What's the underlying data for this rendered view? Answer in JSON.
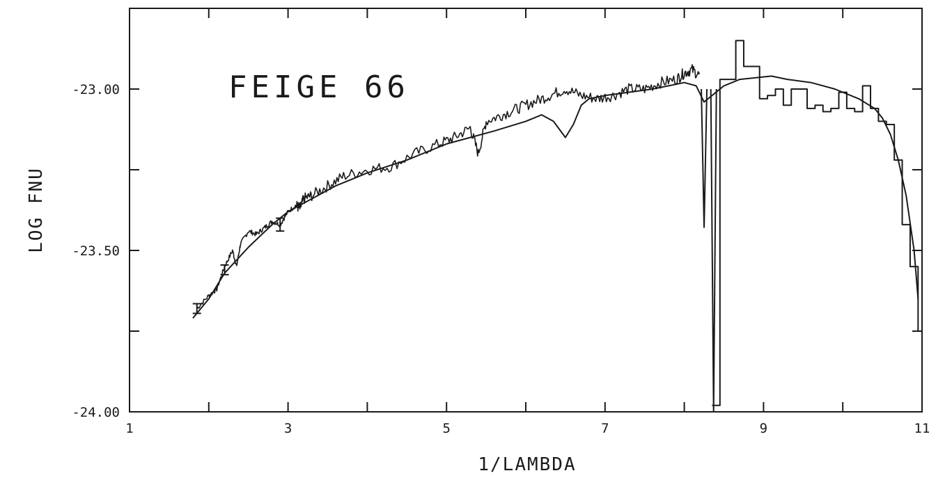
{
  "chart_data": {
    "type": "line",
    "title": "FEIGE 66",
    "xlabel": "1/LAMBDA",
    "ylabel": "LOG FNU",
    "xlim": [
      1,
      11
    ],
    "ylim": [
      -24.0,
      -22.75
    ],
    "x_tick_labels": [
      "1",
      "3",
      "5",
      "7",
      "9",
      "11"
    ],
    "y_tick_labels": [
      "-23.00",
      "-23.50",
      "-24.00"
    ],
    "x_ticks": [
      1,
      3,
      5,
      7,
      9,
      11
    ],
    "x_minor_ticks": [
      2,
      4,
      6,
      8,
      10
    ],
    "y_ticks": [
      -23.0,
      -23.5,
      -24.0
    ],
    "y_minor_ticks": [
      -23.25,
      -23.75
    ],
    "grid": false,
    "series": [
      {
        "style": "model-smooth",
        "x": [
          1.8,
          2.0,
          2.2,
          2.5,
          2.8,
          3.0,
          3.3,
          3.6,
          4.0,
          4.5,
          5.0,
          5.3,
          5.6,
          6.0,
          6.2,
          6.35,
          6.5,
          6.6,
          6.7,
          6.8,
          7.0,
          7.3,
          7.6,
          7.8,
          8.0,
          8.15,
          8.25,
          8.35,
          8.5,
          8.7,
          8.9,
          9.1,
          9.3,
          9.6,
          9.9,
          10.2,
          10.4,
          10.5,
          10.6,
          10.7,
          10.8,
          10.9,
          10.95
        ],
        "y": [
          -23.71,
          -23.65,
          -23.57,
          -23.49,
          -23.42,
          -23.38,
          -23.34,
          -23.3,
          -23.26,
          -23.22,
          -23.17,
          -23.15,
          -23.13,
          -23.1,
          -23.08,
          -23.1,
          -23.15,
          -23.11,
          -23.05,
          -23.03,
          -23.02,
          -23.01,
          -23.0,
          -22.99,
          -22.98,
          -22.99,
          -23.04,
          -23.02,
          -22.99,
          -22.97,
          -22.965,
          -22.96,
          -22.97,
          -22.98,
          -23.0,
          -23.03,
          -23.06,
          -23.09,
          -23.14,
          -23.22,
          -23.33,
          -23.5,
          -23.65
        ]
      },
      {
        "style": "observed-noisy",
        "x": [
          1.85,
          2.0,
          2.1,
          2.2,
          2.3,
          2.35,
          2.4,
          2.5,
          2.6,
          2.7,
          2.8,
          2.9,
          3.0,
          3.1,
          3.15,
          3.2,
          3.3,
          3.5,
          3.7,
          4.0,
          4.3,
          4.6,
          4.9,
          5.1,
          5.3,
          5.4,
          5.5,
          5.7,
          5.9,
          6.1,
          6.3,
          6.5,
          6.7,
          6.9,
          7.1,
          7.3,
          7.5,
          7.7,
          7.9,
          8.0,
          8.1,
          8.2
        ],
        "y": [
          -23.68,
          -23.64,
          -23.62,
          -23.55,
          -23.5,
          -23.55,
          -23.48,
          -23.44,
          -23.45,
          -23.43,
          -23.41,
          -23.42,
          -23.38,
          -23.36,
          -23.37,
          -23.34,
          -23.33,
          -23.3,
          -23.27,
          -23.25,
          -23.24,
          -23.2,
          -23.17,
          -23.15,
          -23.12,
          -23.2,
          -23.1,
          -23.08,
          -23.06,
          -23.04,
          -23.02,
          -23.0,
          -23.02,
          -23.03,
          -23.02,
          -23.0,
          -23.0,
          -22.98,
          -22.97,
          -22.95,
          -22.94,
          -22.96
        ]
      },
      {
        "style": "observed-step",
        "x": [
          8.35,
          8.45,
          8.65,
          8.75,
          8.95,
          9.05,
          9.15,
          9.25,
          9.35,
          9.45,
          9.55,
          9.65,
          9.75,
          9.85,
          9.95,
          10.05,
          10.15,
          10.25,
          10.35,
          10.45,
          10.55,
          10.65,
          10.75,
          10.85,
          10.95
        ],
        "y": [
          -23.98,
          -22.97,
          -22.85,
          -22.93,
          -23.03,
          -23.02,
          -23.0,
          -23.05,
          -23.0,
          -23.0,
          -23.06,
          -23.05,
          -23.07,
          -23.06,
          -23.01,
          -23.06,
          -23.07,
          -22.99,
          -23.06,
          -23.1,
          -23.11,
          -23.22,
          -23.42,
          -23.55,
          -23.75
        ]
      }
    ],
    "absorption_features": [
      {
        "x": 8.25,
        "y_min": -23.43
      },
      {
        "x": 8.37,
        "y_min": -24.0
      }
    ],
    "error_bars": [
      {
        "x": 1.85,
        "y": -23.68,
        "err": 0.015
      },
      {
        "x": 2.2,
        "y": -23.56,
        "err": 0.015
      },
      {
        "x": 2.9,
        "y": -23.42,
        "err": 0.02
      }
    ],
    "colors": {
      "line": "#1a1a1a",
      "background": "#ffffff"
    }
  }
}
